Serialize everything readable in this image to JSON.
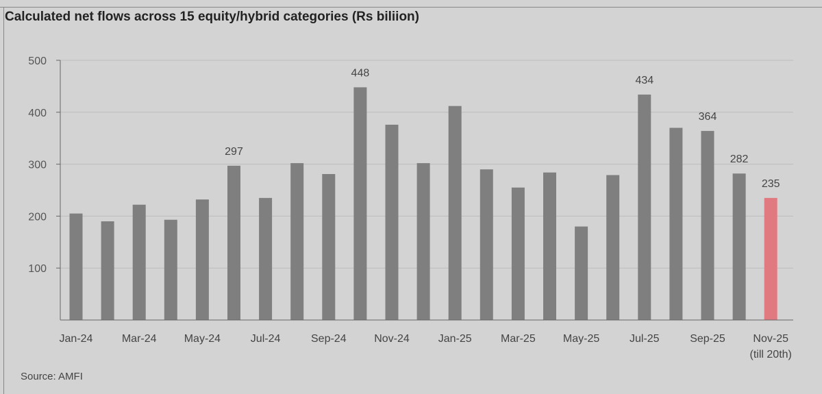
{
  "title": "Calculated net flows across 15 equity/hybrid categories (Rs biliion)",
  "source": "Source: AMFI",
  "colors": {
    "bar": "#7f7f7f",
    "highlight": "#e07a80",
    "grid": "#bcbcbc",
    "axis": "#666666"
  },
  "chart_data": {
    "type": "bar",
    "title": "Calculated net flows across 15 equity/hybrid categories (Rs biliion)",
    "categories": [
      "Jan-24",
      "Feb-24",
      "Mar-24",
      "Apr-24",
      "May-24",
      "Jun-24",
      "Jul-24",
      "Aug-24",
      "Sep-24",
      "Oct-24",
      "Nov-24",
      "Dec-24",
      "Jan-25",
      "Feb-25",
      "Mar-25",
      "Apr-25",
      "May-25",
      "Jun-25",
      "Jul-25",
      "Aug-25",
      "Sep-25",
      "Oct-25",
      "Nov-25"
    ],
    "category_labels": [
      "Jan-24",
      "",
      "Mar-24",
      "",
      "May-24",
      "",
      "Jul-24",
      "",
      "Sep-24",
      "",
      "Nov-24",
      "",
      "Jan-25",
      "",
      "Mar-25",
      "",
      "May-25",
      "",
      "Jul-25",
      "",
      "Sep-25",
      "",
      "Nov-25"
    ],
    "last_label_note": "(till 20th)",
    "values": [
      205,
      190,
      222,
      193,
      232,
      297,
      235,
      302,
      281,
      448,
      376,
      302,
      412,
      290,
      255,
      284,
      180,
      279,
      434,
      370,
      364,
      282,
      235
    ],
    "data_labels": {
      "5": "297",
      "9": "448",
      "18": "434",
      "20": "364",
      "21": "282",
      "22": "235"
    },
    "highlight_index": 22,
    "yticks": [
      100,
      200,
      300,
      400,
      500
    ],
    "ylim": [
      0,
      500
    ],
    "grid": true,
    "xlabel": "",
    "ylabel": ""
  }
}
